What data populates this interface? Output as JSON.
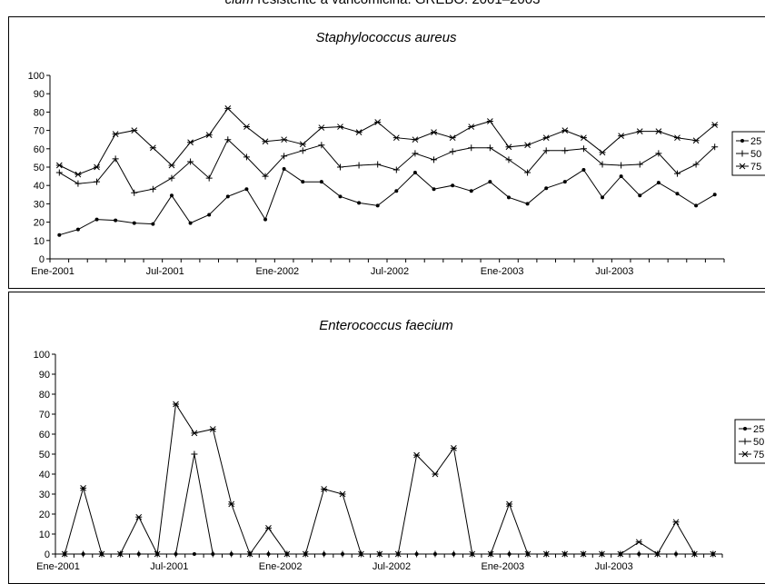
{
  "header": {
    "title_italic": "cium",
    "title_rest": " resistente a vancomicina. GREBO. 2001–2003"
  },
  "chart_data": [
    {
      "type": "line",
      "title": "Staphylococcus aureus",
      "xlabel": "",
      "ylabel": "",
      "ylim": [
        0,
        100
      ],
      "yticks": [
        "0",
        "10",
        "20",
        "30",
        "40",
        "50",
        "60",
        "70",
        "80",
        "90",
        "100"
      ],
      "xtick_labels": [
        "Ene-2001",
        "Jul-2001",
        "Ene-2002",
        "Jul-2002",
        "Ene-2003",
        "Jul-2003"
      ],
      "x_months": 36,
      "gridlines": false,
      "legend_position": "right",
      "series": [
        {
          "name": "25",
          "marker": "dot",
          "values": [
            13,
            16,
            21.5,
            21,
            19.5,
            19,
            34.5,
            19.5,
            24,
            34,
            38,
            21.5,
            49,
            42,
            42,
            34,
            30.5,
            29,
            37,
            47,
            38,
            40,
            37,
            42,
            33.5,
            30,
            38.5,
            42,
            48.5,
            33.5,
            45,
            34.5,
            41.5,
            35.5,
            29,
            35
          ]
        },
        {
          "name": "50",
          "marker": "plus",
          "values": [
            47,
            41,
            42,
            54.5,
            36,
            38,
            44,
            53,
            44,
            65,
            55.5,
            45,
            56,
            59,
            62,
            50,
            51,
            51.5,
            48.5,
            57.5,
            54,
            58.5,
            60.5,
            60.5,
            54,
            47,
            59,
            59,
            60,
            51.5,
            51,
            51.5,
            57.5,
            46.5,
            51.5,
            61
          ]
        },
        {
          "name": "75",
          "marker": "star",
          "values": [
            51,
            46,
            50,
            68,
            70,
            60.5,
            51,
            63.5,
            67.5,
            82,
            72,
            64,
            65,
            62.5,
            71.5,
            72,
            69,
            74.5,
            66,
            65,
            69,
            66,
            72,
            75,
            61,
            62,
            66,
            70,
            66,
            58,
            67,
            69.5,
            69.5,
            66,
            64.5,
            73
          ]
        }
      ]
    },
    {
      "type": "line",
      "title": "Enterococcus faecium",
      "xlabel": "",
      "ylabel": "",
      "ylim": [
        0,
        100
      ],
      "yticks": [
        "0",
        "10",
        "20",
        "30",
        "40",
        "50",
        "60",
        "70",
        "80",
        "90",
        "100"
      ],
      "xtick_labels": [
        "Ene-2001",
        "Jul-2001",
        "Ene-2002",
        "Jul-2002",
        "Ene-2003",
        "Jul-2003"
      ],
      "x_months": 36,
      "gridlines": false,
      "legend_position": "right",
      "series": [
        {
          "name": "25",
          "marker": "dot",
          "values": [
            0,
            0,
            0,
            0,
            0,
            0,
            0,
            0,
            0,
            0,
            0,
            0,
            0,
            0,
            0,
            0,
            0,
            0,
            0,
            0,
            0,
            0,
            0,
            0,
            0,
            0,
            0,
            0,
            0,
            0,
            0,
            0,
            0,
            0,
            0,
            0
          ]
        },
        {
          "name": "50",
          "marker": "plus",
          "values": [
            0,
            0,
            0,
            0,
            0,
            0,
            0,
            50,
            0,
            0,
            0,
            0,
            0,
            0,
            0,
            0,
            0,
            0,
            0,
            0,
            0,
            0,
            0,
            0,
            0,
            0,
            0,
            0,
            0,
            0,
            0,
            0,
            0,
            0,
            0,
            0
          ]
        },
        {
          "name": "75",
          "marker": "star",
          "values": [
            0,
            33,
            0,
            0,
            18.5,
            0,
            75,
            60.5,
            62.5,
            25,
            0,
            13,
            0,
            0,
            32.5,
            30,
            0,
            0,
            0,
            49.5,
            40,
            53,
            0,
            0,
            25,
            0,
            0,
            0,
            0,
            0,
            0,
            6,
            0,
            16,
            0,
            0
          ]
        }
      ]
    }
  ]
}
